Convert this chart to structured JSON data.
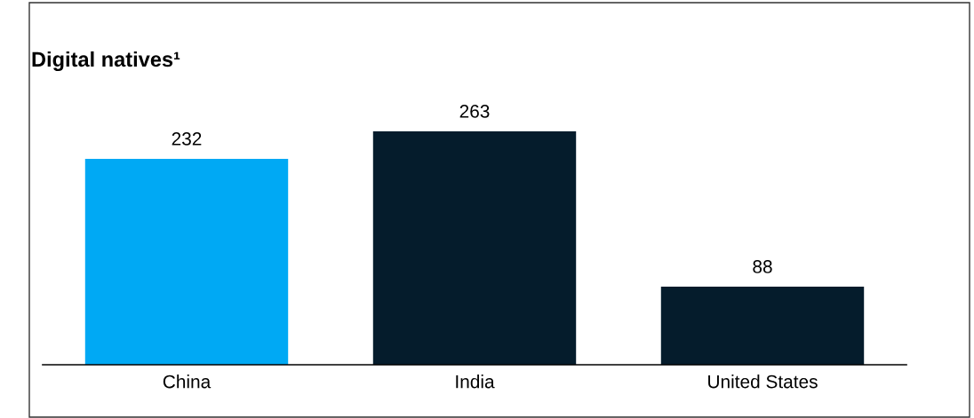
{
  "chart_data": {
    "type": "bar",
    "title": "Digital natives¹",
    "categories": [
      "China",
      "India",
      "United States"
    ],
    "values": [
      232,
      263,
      88
    ],
    "colors": [
      "#00a9f4",
      "#051c2c",
      "#051c2c"
    ],
    "data_labels": true,
    "grid": false,
    "legend": false
  }
}
